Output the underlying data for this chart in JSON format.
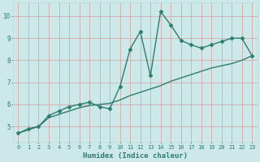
{
  "xlabel": "Humidex (Indice chaleur)",
  "ylabel": "",
  "x_values": [
    0,
    1,
    2,
    3,
    4,
    5,
    6,
    7,
    8,
    9,
    10,
    11,
    12,
    13,
    14,
    15,
    16,
    17,
    18,
    19,
    20,
    21,
    22,
    23
  ],
  "y_line1": [
    4.7,
    4.9,
    5.0,
    5.5,
    5.7,
    5.9,
    6.0,
    6.1,
    5.9,
    5.8,
    6.8,
    8.5,
    9.3,
    7.3,
    10.2,
    9.6,
    8.9,
    8.7,
    8.55,
    8.7,
    8.85,
    9.0,
    9.0,
    8.2
  ],
  "y_line2": [
    4.7,
    4.85,
    5.0,
    5.4,
    5.55,
    5.7,
    5.85,
    5.95,
    6.0,
    6.05,
    6.2,
    6.4,
    6.55,
    6.7,
    6.85,
    7.05,
    7.2,
    7.35,
    7.5,
    7.65,
    7.75,
    7.85,
    8.0,
    8.2
  ],
  "xlim": [
    -0.5,
    23.5
  ],
  "ylim": [
    4.3,
    10.6
  ],
  "yticks": [
    5,
    6,
    7,
    8,
    9,
    10
  ],
  "ytick_labels": [
    "5",
    "6",
    "7",
    "8",
    "9",
    "10"
  ],
  "xticks": [
    0,
    1,
    2,
    3,
    4,
    5,
    6,
    7,
    8,
    9,
    10,
    11,
    12,
    13,
    14,
    15,
    16,
    17,
    18,
    19,
    20,
    21,
    22,
    23
  ],
  "line_color": "#2d7d6e",
  "bg_color": "#cce8e8",
  "grid_color": "#b8d8d8",
  "spine_color": "#c0d8d8",
  "marker": "D",
  "marker_size": 2.5,
  "linewidth": 1.0,
  "tick_fontsize": 5.0,
  "xlabel_fontsize": 6.5
}
